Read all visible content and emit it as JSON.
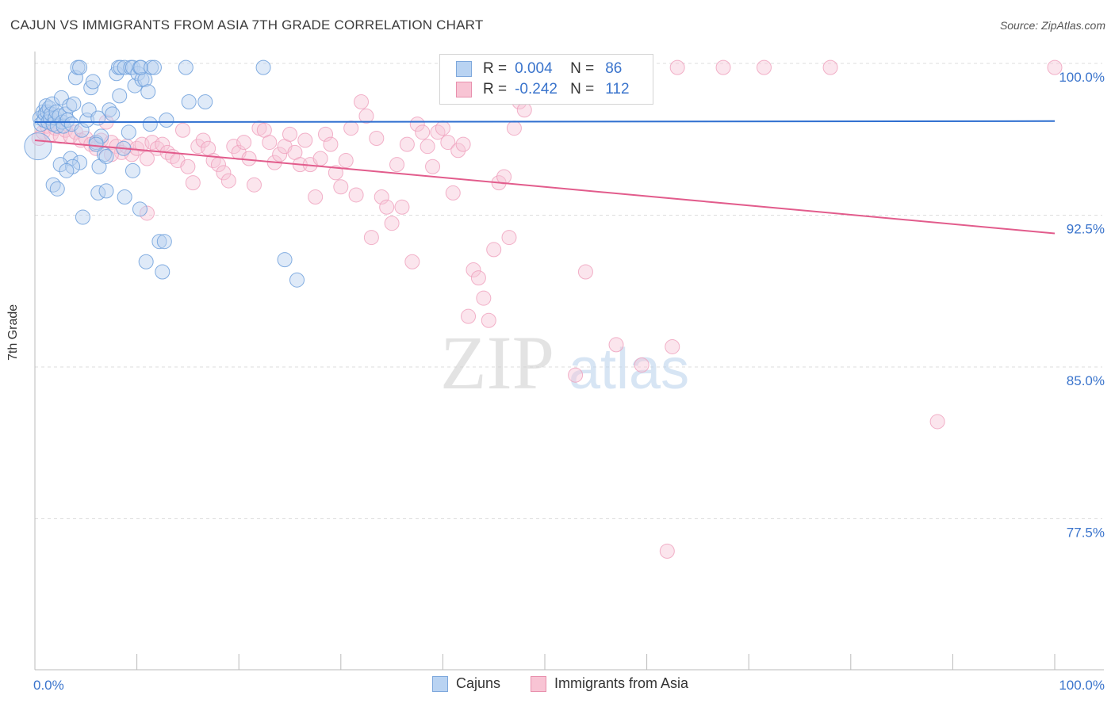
{
  "title": "CAJUN VS IMMIGRANTS FROM ASIA 7TH GRADE CORRELATION CHART",
  "source": "Source: ZipAtlas.com",
  "watermark": {
    "left": "ZIP",
    "right": "atlas"
  },
  "legend": {
    "r_label": "R =",
    "n_label": "N =",
    "rows": [
      {
        "r": "0.004",
        "n": "86"
      },
      {
        "r": "-0.242",
        "n": "112"
      }
    ]
  },
  "bottom_legend": [
    "Cajuns",
    "Immigrants from Asia"
  ],
  "chart_data": {
    "type": "scatter",
    "title": "CAJUN VS IMMIGRANTS FROM ASIA 7TH GRADE CORRELATION CHART",
    "xlabel": "",
    "ylabel": "7th Grade",
    "xlim": [
      0,
      100
    ],
    "ylim": [
      70.0,
      101.5
    ],
    "x_tick_labels": [
      "0.0%",
      "100.0%"
    ],
    "y_ticks": [
      {
        "value": 100.0,
        "label": "100.0%"
      },
      {
        "value": 92.5,
        "label": "92.5%"
      },
      {
        "value": 85.0,
        "label": "85.0%"
      },
      {
        "value": 77.5,
        "label": "77.5%"
      }
    ],
    "colors": {
      "cajuns": "#6fa0dc",
      "asia": "#ef9fbb",
      "cajuns_line": "#2f6fd0",
      "asia_line": "#e25c8c"
    },
    "series": [
      {
        "name": "Cajuns",
        "trend": {
          "y_at_0": 97.1,
          "y_at_100": 97.15
        },
        "points": [
          [
            0.3,
            95.9
          ],
          [
            0.5,
            97.3
          ],
          [
            0.6,
            97.0
          ],
          [
            0.8,
            97.6
          ],
          [
            0.9,
            97.2
          ],
          [
            1.0,
            97.5
          ],
          [
            1.1,
            97.9
          ],
          [
            1.2,
            97.6
          ],
          [
            1.3,
            97.1
          ],
          [
            1.4,
            97.8
          ],
          [
            1.5,
            97.3
          ],
          [
            1.6,
            97.5
          ],
          [
            1.7,
            98.0
          ],
          [
            1.8,
            97.0
          ],
          [
            2.0,
            97.3
          ],
          [
            2.1,
            97.6
          ],
          [
            2.2,
            96.9
          ],
          [
            2.4,
            97.4
          ],
          [
            2.6,
            98.3
          ],
          [
            2.7,
            97.1
          ],
          [
            2.8,
            96.9
          ],
          [
            3.0,
            97.5
          ],
          [
            3.2,
            97.2
          ],
          [
            3.4,
            97.9
          ],
          [
            3.6,
            97.0
          ],
          [
            3.8,
            98.0
          ],
          [
            4.0,
            99.3
          ],
          [
            4.2,
            99.8
          ],
          [
            4.4,
            99.8
          ],
          [
            4.6,
            96.7
          ],
          [
            5.1,
            97.2
          ],
          [
            5.3,
            97.7
          ],
          [
            5.5,
            98.8
          ],
          [
            5.7,
            99.1
          ],
          [
            6.2,
            97.3
          ],
          [
            7.3,
            97.7
          ],
          [
            7.6,
            97.5
          ],
          [
            8.0,
            99.5
          ],
          [
            8.2,
            99.8
          ],
          [
            8.3,
            98.4
          ],
          [
            8.4,
            99.8
          ],
          [
            8.8,
            99.8
          ],
          [
            9.4,
            99.8
          ],
          [
            9.6,
            99.8
          ],
          [
            9.8,
            98.9
          ],
          [
            10.1,
            99.5
          ],
          [
            10.3,
            99.8
          ],
          [
            10.5,
            99.2
          ],
          [
            10.8,
            99.2
          ],
          [
            10.4,
            99.8
          ],
          [
            11.1,
            98.6
          ],
          [
            11.4,
            99.8
          ],
          [
            11.7,
            99.8
          ],
          [
            14.8,
            99.8
          ],
          [
            15.1,
            98.1
          ],
          [
            16.7,
            98.1
          ],
          [
            22.4,
            99.8
          ],
          [
            11.3,
            97.0
          ],
          [
            12.9,
            97.2
          ],
          [
            6.0,
            96.1
          ],
          [
            6.8,
            95.5
          ],
          [
            8.7,
            95.8
          ],
          [
            9.2,
            96.6
          ],
          [
            3.5,
            95.3
          ],
          [
            2.5,
            95.0
          ],
          [
            4.4,
            95.1
          ],
          [
            3.7,
            94.9
          ],
          [
            3.1,
            94.7
          ],
          [
            6.3,
            94.9
          ],
          [
            9.6,
            94.7
          ],
          [
            7.0,
            95.4
          ],
          [
            1.8,
            94.0
          ],
          [
            2.2,
            93.8
          ],
          [
            6.2,
            93.6
          ],
          [
            7.0,
            93.7
          ],
          [
            8.8,
            93.4
          ],
          [
            4.7,
            92.4
          ],
          [
            10.3,
            92.8
          ],
          [
            12.2,
            91.2
          ],
          [
            12.7,
            91.2
          ],
          [
            10.9,
            90.2
          ],
          [
            12.5,
            89.7
          ],
          [
            24.5,
            90.3
          ],
          [
            25.7,
            89.3
          ],
          [
            6.5,
            96.4
          ],
          [
            6.0,
            96.0
          ]
        ]
      },
      {
        "name": "Immigrants from Asia",
        "trend": {
          "y_at_0": 96.2,
          "y_at_100": 91.6
        },
        "points": [
          [
            0.4,
            96.3
          ],
          [
            0.8,
            96.6
          ],
          [
            1.2,
            96.9
          ],
          [
            1.6,
            96.5
          ],
          [
            2.0,
            96.8
          ],
          [
            2.5,
            96.4
          ],
          [
            3.0,
            96.7
          ],
          [
            3.5,
            96.4
          ],
          [
            4.0,
            96.6
          ],
          [
            4.5,
            96.2
          ],
          [
            5.0,
            96.3
          ],
          [
            5.5,
            96.0
          ],
          [
            6.0,
            95.8
          ],
          [
            6.5,
            96.2
          ],
          [
            7.0,
            97.1
          ],
          [
            7.5,
            96.1
          ],
          [
            8.0,
            95.9
          ],
          [
            8.5,
            95.6
          ],
          [
            9.0,
            95.9
          ],
          [
            9.5,
            95.5
          ],
          [
            10.0,
            95.8
          ],
          [
            10.5,
            96.0
          ],
          [
            11.0,
            95.3
          ],
          [
            11.5,
            96.1
          ],
          [
            12.0,
            95.8
          ],
          [
            12.5,
            96.0
          ],
          [
            13.0,
            95.6
          ],
          [
            13.5,
            95.4
          ],
          [
            14.0,
            95.2
          ],
          [
            14.5,
            96.7
          ],
          [
            15.0,
            94.9
          ],
          [
            15.5,
            94.1
          ],
          [
            16.0,
            95.9
          ],
          [
            16.5,
            96.2
          ],
          [
            17.0,
            95.8
          ],
          [
            17.5,
            95.2
          ],
          [
            18.0,
            95.0
          ],
          [
            18.5,
            94.6
          ],
          [
            19.0,
            94.2
          ],
          [
            19.5,
            95.9
          ],
          [
            20.0,
            95.6
          ],
          [
            20.5,
            96.1
          ],
          [
            21.0,
            95.3
          ],
          [
            21.5,
            94.0
          ],
          [
            22.0,
            96.8
          ],
          [
            22.5,
            96.7
          ],
          [
            23.0,
            96.1
          ],
          [
            23.5,
            95.1
          ],
          [
            24.0,
            95.5
          ],
          [
            24.5,
            95.9
          ],
          [
            25.0,
            96.5
          ],
          [
            25.5,
            95.6
          ],
          [
            26.0,
            95.0
          ],
          [
            26.5,
            96.2
          ],
          [
            27.0,
            95.0
          ],
          [
            27.5,
            93.4
          ],
          [
            28.0,
            95.3
          ],
          [
            28.5,
            96.5
          ],
          [
            29.0,
            96.0
          ],
          [
            29.5,
            94.6
          ],
          [
            30.0,
            93.9
          ],
          [
            30.5,
            95.2
          ],
          [
            31.0,
            96.8
          ],
          [
            31.5,
            93.5
          ],
          [
            32.0,
            98.1
          ],
          [
            32.5,
            97.4
          ],
          [
            33.0,
            91.4
          ],
          [
            33.5,
            96.3
          ],
          [
            34.0,
            93.4
          ],
          [
            34.5,
            92.9
          ],
          [
            35.0,
            92.1
          ],
          [
            35.5,
            95.0
          ],
          [
            36.0,
            92.9
          ],
          [
            36.5,
            96.0
          ],
          [
            37.0,
            90.2
          ],
          [
            37.5,
            97.0
          ],
          [
            38.0,
            96.6
          ],
          [
            38.5,
            95.9
          ],
          [
            39.0,
            94.9
          ],
          [
            39.5,
            96.6
          ],
          [
            40.0,
            96.8
          ],
          [
            40.5,
            96.1
          ],
          [
            41.0,
            93.6
          ],
          [
            41.5,
            95.7
          ],
          [
            42.0,
            96.0
          ],
          [
            42.5,
            87.5
          ],
          [
            43.0,
            89.8
          ],
          [
            43.5,
            89.4
          ],
          [
            44.0,
            88.4
          ],
          [
            44.5,
            87.3
          ],
          [
            45.0,
            90.8
          ],
          [
            45.5,
            94.1
          ],
          [
            46.0,
            94.4
          ],
          [
            46.5,
            91.4
          ],
          [
            47.0,
            96.8
          ],
          [
            47.5,
            98.1
          ],
          [
            48.0,
            97.7
          ],
          [
            52.0,
            99.8
          ],
          [
            53.0,
            84.6
          ],
          [
            54.0,
            89.7
          ],
          [
            57.0,
            86.1
          ],
          [
            59.5,
            85.1
          ],
          [
            62.0,
            75.9
          ],
          [
            62.5,
            86.0
          ],
          [
            63.0,
            99.8
          ],
          [
            67.5,
            99.8
          ],
          [
            71.5,
            99.8
          ],
          [
            78.0,
            99.8
          ],
          [
            88.5,
            82.3
          ],
          [
            100.0,
            99.8
          ],
          [
            11.0,
            92.6
          ],
          [
            7.5,
            95.5
          ]
        ]
      }
    ]
  }
}
